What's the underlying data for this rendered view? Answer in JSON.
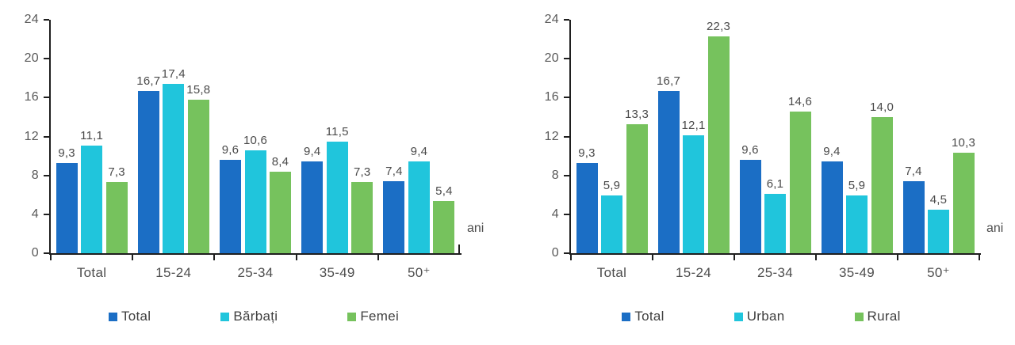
{
  "chart_data": [
    {
      "type": "bar",
      "title": "",
      "categories": [
        "Total",
        "15-24",
        "25-34",
        "35-49",
        "50⁺"
      ],
      "series": [
        {
          "name": "Total",
          "color": "#1B6EC5",
          "values": [
            9.3,
            16.7,
            9.6,
            9.4,
            7.4
          ],
          "labels": [
            "9,3",
            "16,7",
            "9,6",
            "9,4",
            "7,4"
          ]
        },
        {
          "name": "Bărbați",
          "color": "#20C5DC",
          "values": [
            11.1,
            17.4,
            10.6,
            11.5,
            9.4
          ],
          "labels": [
            "11,1",
            "17,4",
            "10,6",
            "11,5",
            "9,4"
          ]
        },
        {
          "name": "Femei",
          "color": "#76C25D",
          "values": [
            7.3,
            15.8,
            8.4,
            7.3,
            5.4
          ],
          "labels": [
            "7,3",
            "15,8",
            "8,4",
            "7,3",
            "5,4"
          ]
        }
      ],
      "y_ticks": [
        "0",
        "4",
        "8",
        "12",
        "16",
        "20",
        "24"
      ],
      "ylim": [
        0,
        24
      ],
      "x_unit_label": "ani",
      "legend_position": "bottom",
      "grid": false
    },
    {
      "type": "bar",
      "title": "",
      "categories": [
        "Total",
        "15-24",
        "25-34",
        "35-49",
        "50⁺"
      ],
      "series": [
        {
          "name": "Total",
          "color": "#1B6EC5",
          "values": [
            9.3,
            16.7,
            9.6,
            9.4,
            7.4
          ],
          "labels": [
            "9,3",
            "16,7",
            "9,6",
            "9,4",
            "7,4"
          ]
        },
        {
          "name": "Urban",
          "color": "#20C5DC",
          "values": [
            5.9,
            12.1,
            6.1,
            5.9,
            4.5
          ],
          "labels": [
            "5,9",
            "12,1",
            "6,1",
            "5,9",
            "4,5"
          ]
        },
        {
          "name": "Rural",
          "color": "#76C25D",
          "values": [
            13.3,
            22.3,
            14.6,
            14.0,
            10.3
          ],
          "labels": [
            "13,3",
            "22,3",
            "14,6",
            "14,0",
            "10,3"
          ]
        }
      ],
      "y_ticks": [
        "0",
        "4",
        "8",
        "12",
        "16",
        "20",
        "24"
      ],
      "ylim": [
        0,
        24
      ],
      "x_unit_label": "ani",
      "legend_position": "bottom",
      "grid": false
    }
  ]
}
